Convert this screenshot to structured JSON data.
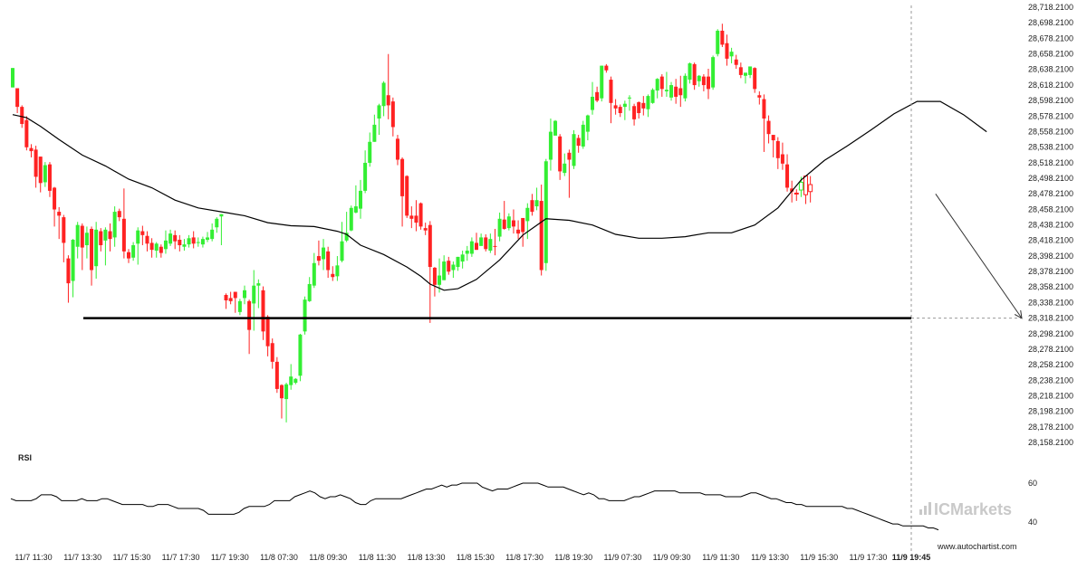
{
  "chart_data": {
    "type": "candlestick",
    "price_axis": {
      "labels": [
        "28,718.2100",
        "28,698.2100",
        "28,678.2100",
        "28,658.2100",
        "28,638.2100",
        "28,618.2100",
        "28,598.2100",
        "28,578.2100",
        "28,558.2100",
        "28,538.2100",
        "28,518.2100",
        "28,498.2100",
        "28,478.2100",
        "28,458.2100",
        "28,438.2100",
        "28,418.2100",
        "28,398.2100",
        "28,378.2100",
        "28,358.2100",
        "28,338.2100",
        "28,318.2100",
        "28,298.2100",
        "28,278.2100",
        "28,258.2100",
        "28,238.2100",
        "28,218.2100",
        "28,198.2100",
        "28,178.2100",
        "28,158.2100"
      ],
      "ylim": [
        28158.21,
        28718.21
      ]
    },
    "time_axis": {
      "labels": [
        "11/7 11:30",
        "11/7 13:30",
        "11/7 15:30",
        "11/7 17:30",
        "11/7 19:30",
        "11/8 07:30",
        "11/8 09:30",
        "11/8 11:30",
        "11/8 13:30",
        "11/8 15:30",
        "11/8 17:30",
        "11/8 19:30",
        "11/9 07:30",
        "11/9 09:30",
        "11/9 11:30",
        "11/9 13:30",
        "11/9 15:30",
        "11/9 17:30",
        "11/9 19:45"
      ],
      "highlight": "11/9 19:45"
    },
    "candles": [
      [
        28615,
        28640,
        28615,
        28640
      ],
      [
        28614,
        28590,
        28582,
        28612
      ],
      [
        28590,
        28568,
        28563,
        28592
      ],
      [
        28573,
        28538,
        28534,
        28578
      ],
      [
        28537,
        28533,
        28525,
        28542
      ],
      [
        28535,
        28500,
        28486,
        28540
      ],
      [
        28526,
        28492,
        28480,
        28526
      ],
      [
        28493,
        28515,
        28487,
        28519
      ],
      [
        28516,
        28482,
        28474,
        28519
      ],
      [
        28486,
        28458,
        28436,
        28487
      ],
      [
        28455,
        28450,
        28420,
        28461
      ],
      [
        28448,
        28415,
        28390,
        28451
      ],
      [
        28395,
        28363,
        28338,
        28399
      ],
      [
        28366,
        28419,
        28345,
        28420
      ],
      [
        28410,
        28438,
        28395,
        28442
      ],
      [
        28437,
        28409,
        28380,
        28440
      ],
      [
        28412,
        28428,
        28395,
        28436
      ],
      [
        28433,
        28380,
        28360,
        28436
      ],
      [
        28385,
        28432,
        28369,
        28442
      ],
      [
        28430,
        28412,
        28404,
        28434
      ],
      [
        28418,
        28432,
        28386,
        28435
      ],
      [
        28430,
        28420,
        28404,
        28440
      ],
      [
        28422,
        28455,
        28410,
        28462
      ],
      [
        28456,
        28448,
        28443,
        28459
      ],
      [
        28446,
        28404,
        28395,
        28485
      ],
      [
        28403,
        28395,
        28389,
        28407
      ],
      [
        28396,
        28412,
        28392,
        28416
      ],
      [
        28414,
        28431,
        28387,
        28435
      ],
      [
        28430,
        28425,
        28412,
        28437
      ],
      [
        28424,
        28414,
        28404,
        28430
      ],
      [
        28415,
        28406,
        28396,
        28421
      ],
      [
        28405,
        28414,
        28396,
        28416
      ],
      [
        28410,
        28402,
        28396,
        28413
      ],
      [
        28407,
        28418,
        28401,
        28431
      ],
      [
        28414,
        28427,
        28411,
        28432
      ],
      [
        28425,
        28417,
        28407,
        28431
      ],
      [
        28419,
        28412,
        28404,
        28425
      ],
      [
        28410,
        28413,
        28405,
        28420
      ],
      [
        28413,
        28421,
        28409,
        28425
      ],
      [
        28422,
        28414,
        28408,
        28430
      ],
      [
        28415,
        28416,
        28410,
        28422
      ],
      [
        28413,
        28420,
        28409,
        28423
      ],
      [
        28419,
        28422,
        28416,
        28429
      ],
      [
        28420,
        28432,
        28417,
        28440
      ],
      [
        28435,
        28446,
        28428,
        28448
      ],
      [
        28449,
        28452,
        28412,
        28452
      ],
      [
        28348,
        28341,
        28330,
        28350
      ],
      [
        28344,
        28340,
        28336,
        28352
      ],
      [
        28352,
        28344,
        28325,
        28352
      ],
      [
        28326,
        28340,
        28322,
        28343
      ],
      [
        28344,
        28354,
        28336,
        28360
      ],
      [
        28340,
        28303,
        28272,
        28342
      ],
      [
        28337,
        28360,
        28302,
        28380
      ],
      [
        28360,
        28363,
        28331,
        28368
      ],
      [
        28354,
        28301,
        28290,
        28359
      ],
      [
        28320,
        28282,
        28269,
        28322
      ],
      [
        28286,
        28262,
        28253,
        28292
      ],
      [
        28262,
        28227,
        28222,
        28268
      ],
      [
        28232,
        28215,
        28189,
        28233
      ],
      [
        28214,
        28233,
        28184,
        28235
      ],
      [
        28232,
        28243,
        28226,
        28259
      ],
      [
        28235,
        28240,
        28233,
        28241
      ],
      [
        28244,
        28297,
        28237,
        28298
      ],
      [
        28301,
        28342,
        28297,
        28346
      ],
      [
        28340,
        28362,
        28339,
        28371
      ],
      [
        28360,
        28389,
        28357,
        28402
      ],
      [
        28398,
        28392,
        28386,
        28418
      ],
      [
        28394,
        28409,
        28380,
        28420
      ],
      [
        28404,
        28380,
        28370,
        28410
      ],
      [
        28375,
        28371,
        28366,
        28385
      ],
      [
        28372,
        28386,
        28366,
        28398
      ],
      [
        28392,
        28417,
        28390,
        28442
      ],
      [
        28418,
        28428,
        28416,
        28455
      ],
      [
        28431,
        28460,
        28430,
        28463
      ],
      [
        28454,
        28462,
        28453,
        28489
      ],
      [
        28459,
        28482,
        28446,
        28496
      ],
      [
        28482,
        28518,
        28479,
        28534
      ],
      [
        28518,
        28545,
        28513,
        28557
      ],
      [
        28545,
        28567,
        28545,
        28580
      ],
      [
        28575,
        28592,
        28554,
        28594
      ],
      [
        28591,
        28621,
        28578,
        28623
      ],
      [
        28605,
        28592,
        28574,
        28658
      ],
      [
        28597,
        28564,
        28552,
        28602
      ],
      [
        28549,
        28522,
        28515,
        28554
      ],
      [
        28523,
        28475,
        28436,
        28525
      ],
      [
        28501,
        28450,
        28447,
        28502
      ],
      [
        28450,
        28446,
        28434,
        28462
      ],
      [
        28450,
        28441,
        28430,
        28470
      ],
      [
        28466,
        28436,
        28432,
        28467
      ],
      [
        28434,
        28431,
        28425,
        28441
      ],
      [
        28438,
        28384,
        28312,
        28443
      ],
      [
        28383,
        28361,
        28346,
        28384
      ],
      [
        28361,
        28373,
        28351,
        28395
      ],
      [
        28367,
        28391,
        28367,
        28399
      ],
      [
        28392,
        28378,
        28374,
        28397
      ],
      [
        28380,
        28387,
        28370,
        28391
      ],
      [
        28384,
        28397,
        28379,
        28397
      ],
      [
        28391,
        28400,
        28382,
        28405
      ],
      [
        28401,
        28405,
        28392,
        28411
      ],
      [
        28401,
        28417,
        28397,
        28422
      ],
      [
        28415,
        28406,
        28406,
        28428
      ],
      [
        28411,
        28422,
        28414,
        28427
      ],
      [
        28422,
        28407,
        28404,
        28426
      ],
      [
        28405,
        28420,
        28402,
        28427
      ],
      [
        28411,
        28410,
        28399,
        28433
      ],
      [
        28423,
        28446,
        28417,
        28454
      ],
      [
        28445,
        28433,
        28432,
        28469
      ],
      [
        28434,
        28449,
        28431,
        28453
      ],
      [
        28444,
        28436,
        28427,
        28458
      ],
      [
        28432,
        28427,
        28420,
        28444
      ],
      [
        28447,
        28429,
        28410,
        28444
      ],
      [
        28443,
        28460,
        28420,
        28466
      ],
      [
        28470,
        28455,
        28450,
        28478
      ],
      [
        28462,
        28470,
        28457,
        28486
      ],
      [
        28469,
        28380,
        28373,
        28490
      ],
      [
        28389,
        28520,
        28379,
        28523
      ],
      [
        28522,
        28558,
        28508,
        28575
      ],
      [
        28553,
        28572,
        28556,
        28573
      ],
      [
        28552,
        28507,
        28496,
        28555
      ],
      [
        28505,
        28517,
        28501,
        28530
      ],
      [
        28531,
        28522,
        28473,
        28535
      ],
      [
        28514,
        28555,
        28510,
        28560
      ],
      [
        28550,
        28540,
        28531,
        28554
      ],
      [
        28539,
        28567,
        28536,
        28572
      ],
      [
        28558,
        28579,
        28547,
        28580
      ],
      [
        28586,
        28603,
        28580,
        28622
      ],
      [
        28609,
        28598,
        28596,
        28616
      ],
      [
        28601,
        28643,
        28597,
        28643
      ],
      [
        28643,
        28637,
        28634,
        28645
      ],
      [
        28625,
        28595,
        28569,
        28629
      ],
      [
        28592,
        28588,
        28580,
        28600
      ],
      [
        28590,
        28582,
        28577,
        28593
      ],
      [
        28590,
        28594,
        28573,
        28598
      ],
      [
        28601,
        28602,
        28585,
        28605
      ],
      [
        28591,
        28574,
        28566,
        28594
      ],
      [
        28596,
        28582,
        28575,
        28597
      ],
      [
        28595,
        28588,
        28579,
        28604
      ],
      [
        28587,
        28604,
        28577,
        28606
      ],
      [
        28595,
        28612,
        28594,
        28614
      ],
      [
        28611,
        28626,
        28601,
        28627
      ],
      [
        28629,
        28613,
        28603,
        28632
      ],
      [
        28610,
        28612,
        28603,
        28635
      ],
      [
        28602,
        28618,
        28598,
        28622
      ],
      [
        28616,
        28603,
        28594,
        28626
      ],
      [
        28614,
        28605,
        28590,
        28630
      ],
      [
        28601,
        28630,
        28597,
        28633
      ],
      [
        28625,
        28646,
        28620,
        28647
      ],
      [
        28645,
        28618,
        28612,
        28647
      ],
      [
        28623,
        28630,
        28616,
        28631
      ],
      [
        28629,
        28618,
        28610,
        28632
      ],
      [
        28629,
        28613,
        28600,
        28639
      ],
      [
        28615,
        28654,
        28612,
        28656
      ],
      [
        28658,
        28688,
        28655,
        28690
      ],
      [
        28688,
        28670,
        28667,
        28697
      ],
      [
        28672,
        28652,
        28643,
        28683
      ],
      [
        28655,
        28661,
        28646,
        28666
      ],
      [
        28651,
        28644,
        28639,
        28657
      ],
      [
        28641,
        28631,
        28627,
        28647
      ],
      [
        28630,
        28634,
        28620,
        28633
      ],
      [
        28631,
        28642,
        28627,
        28642
      ],
      [
        28640,
        28613,
        28608,
        28641
      ],
      [
        28605,
        28602,
        28593,
        28610
      ],
      [
        28600,
        28575,
        28532,
        28606
      ],
      [
        28572,
        28555,
        28543,
        28579
      ],
      [
        28554,
        28547,
        28525,
        28553
      ],
      [
        28546,
        28524,
        28510,
        28551
      ],
      [
        28529,
        28517,
        28509,
        28544
      ],
      [
        28516,
        28486,
        28481,
        28529
      ],
      [
        28485,
        28481,
        28467,
        28495
      ],
      [
        28479,
        28478,
        28469,
        28484
      ],
      [
        28483,
        28493,
        28474,
        28500
      ],
      [
        28501,
        28477,
        28465,
        28500
      ],
      [
        28490,
        28481,
        28467,
        28501
      ]
    ],
    "moving_average": [
      [
        0,
        28580
      ],
      [
        3,
        28576
      ],
      [
        6,
        28565
      ],
      [
        10,
        28548
      ],
      [
        15,
        28528
      ],
      [
        20,
        28514
      ],
      [
        25,
        28497
      ],
      [
        30,
        28486
      ],
      [
        35,
        28470
      ],
      [
        40,
        28460
      ],
      [
        45,
        28455
      ],
      [
        50,
        28450
      ],
      [
        55,
        28441
      ],
      [
        60,
        28437
      ],
      [
        65,
        28436
      ],
      [
        70,
        28430
      ],
      [
        72,
        28426
      ],
      [
        75,
        28412
      ],
      [
        80,
        28400
      ],
      [
        85,
        28384
      ],
      [
        88,
        28372
      ],
      [
        90,
        28362
      ],
      [
        93,
        28354
      ],
      [
        96,
        28356
      ],
      [
        100,
        28368
      ],
      [
        105,
        28393
      ],
      [
        110,
        28425
      ],
      [
        115,
        28446
      ],
      [
        120,
        28444
      ],
      [
        125,
        28438
      ],
      [
        130,
        28426
      ],
      [
        135,
        28421
      ],
      [
        140,
        28421
      ],
      [
        145,
        28423
      ],
      [
        150,
        28428
      ],
      [
        155,
        28428
      ],
      [
        160,
        28438
      ],
      [
        165,
        28460
      ],
      [
        170,
        28496
      ],
      [
        175,
        28521
      ],
      [
        180,
        28540
      ],
      [
        185,
        28560
      ],
      [
        190,
        28581
      ],
      [
        195,
        28597
      ],
      [
        200,
        28597
      ],
      [
        205,
        28580
      ],
      [
        210,
        28558
      ]
    ],
    "support_level": 28318.21,
    "projection": {
      "from_index": 199,
      "from_price": 28478,
      "to_price": 28318
    },
    "rsi": {
      "title": "RSI",
      "labels": [
        "60",
        "40"
      ],
      "values": [
        52,
        51,
        51,
        51,
        51,
        52,
        54,
        54,
        54,
        53,
        51,
        51,
        51,
        51,
        52,
        51,
        51,
        51,
        52,
        52,
        51,
        50,
        49,
        49,
        49,
        49,
        49,
        48,
        48,
        49,
        49,
        49,
        48,
        47,
        47,
        47,
        47,
        47,
        46,
        44,
        44,
        44,
        44,
        44,
        44,
        45,
        47,
        48,
        48,
        48,
        48,
        49,
        51,
        51,
        51,
        51,
        53,
        54,
        55,
        56,
        55,
        53,
        52,
        53,
        53,
        54,
        53,
        52,
        50,
        49,
        49,
        51,
        52,
        52,
        52,
        52,
        52,
        52,
        53,
        54,
        55,
        56,
        57,
        57,
        58,
        59,
        58,
        59,
        59,
        60,
        60,
        60,
        60,
        58,
        57,
        56,
        57,
        57,
        57,
        58,
        59,
        60,
        60,
        60,
        60,
        59,
        58,
        58,
        58,
        58,
        57,
        56,
        55,
        54,
        55,
        54,
        52,
        52,
        51,
        51,
        51,
        51,
        52,
        53,
        53,
        54,
        55,
        56,
        56,
        56,
        56,
        56,
        55,
        55,
        55,
        55,
        55,
        54,
        54,
        54,
        54,
        53,
        53,
        53,
        53,
        54,
        55,
        55,
        54,
        53,
        52,
        52,
        51,
        50,
        50,
        49,
        49,
        48,
        48,
        48,
        48,
        48,
        48,
        48,
        48,
        47,
        47,
        46,
        45,
        44,
        43,
        42,
        41,
        40,
        39,
        39,
        38,
        38,
        38,
        38,
        38,
        37,
        37,
        36
      ]
    }
  },
  "branding": {
    "watermark": "ICMarkets",
    "url": "www.autochartist.com"
  },
  "colors": {
    "bull": "#33ee33",
    "bear": "#ff2222",
    "ma": "#000000",
    "support": "#000000",
    "grid_cursor": "#999999",
    "watermark": "#c9c9c9"
  }
}
